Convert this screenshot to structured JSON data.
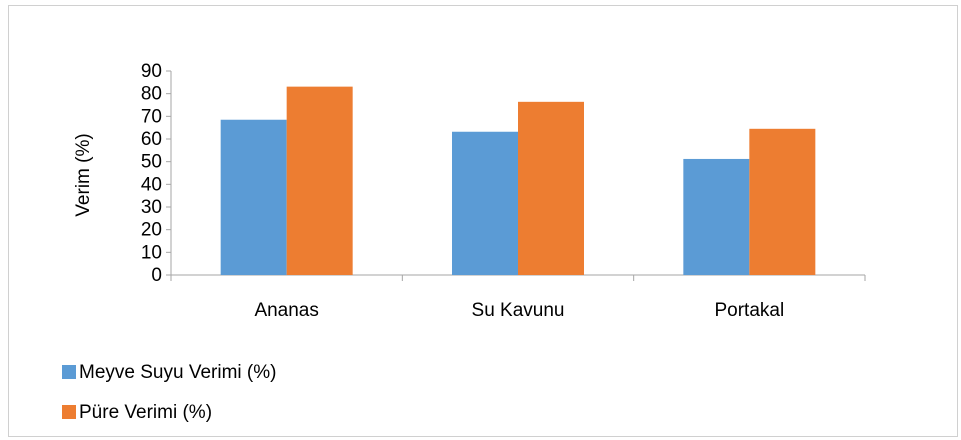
{
  "chart_data": {
    "type": "bar",
    "title": "",
    "xlabel": "",
    "ylabel": "Verim (%)",
    "categories": [
      "Ananas",
      "Su Kavunu",
      "Portakal"
    ],
    "series": [
      {
        "name": "Meyve Suyu Verimi (%)",
        "color": "#5b9bd5",
        "values": [
          68.5,
          63.2,
          51.2
        ]
      },
      {
        "name": "Püre Verimi (%)",
        "color": "#ed7d31",
        "values": [
          83.1,
          76.4,
          64.5
        ]
      }
    ],
    "ylim": [
      0,
      90
    ],
    "yticks": [
      "0",
      "10",
      "20",
      "30",
      "40",
      "50",
      "60",
      "70",
      "80",
      "90"
    ],
    "grid": false,
    "legend_position": "bottom-left"
  }
}
